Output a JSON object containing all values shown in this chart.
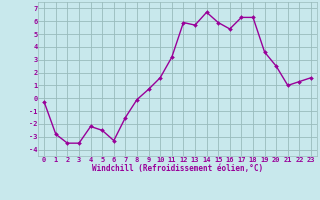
{
  "x": [
    0,
    1,
    2,
    3,
    4,
    5,
    6,
    7,
    8,
    9,
    10,
    11,
    12,
    13,
    14,
    15,
    16,
    17,
    18,
    19,
    20,
    21,
    22,
    23
  ],
  "y": [
    -0.3,
    -2.8,
    -3.5,
    -3.5,
    -2.2,
    -2.5,
    -3.3,
    -1.5,
    -0.1,
    0.7,
    1.6,
    3.2,
    5.9,
    5.7,
    6.7,
    5.9,
    5.4,
    6.3,
    6.3,
    3.6,
    2.5,
    1.0,
    1.3,
    1.6
  ],
  "xlim": [
    -0.5,
    23.5
  ],
  "ylim": [
    -4.5,
    7.5
  ],
  "yticks": [
    -4,
    -3,
    -2,
    -1,
    0,
    1,
    2,
    3,
    4,
    5,
    6,
    7
  ],
  "xticks": [
    0,
    1,
    2,
    3,
    4,
    5,
    6,
    7,
    8,
    9,
    10,
    11,
    12,
    13,
    14,
    15,
    16,
    17,
    18,
    19,
    20,
    21,
    22,
    23
  ],
  "xlabel": "Windchill (Refroidissement éolien,°C)",
  "line_color": "#990099",
  "marker_color": "#990099",
  "bg_color": "#c8e8ec",
  "grid_color": "#99bbbb",
  "tick_color": "#990099",
  "label_color": "#990099",
  "marker": "D",
  "markersize": 2,
  "linewidth": 1.0,
  "tick_fontsize": 5,
  "xlabel_fontsize": 5.5
}
